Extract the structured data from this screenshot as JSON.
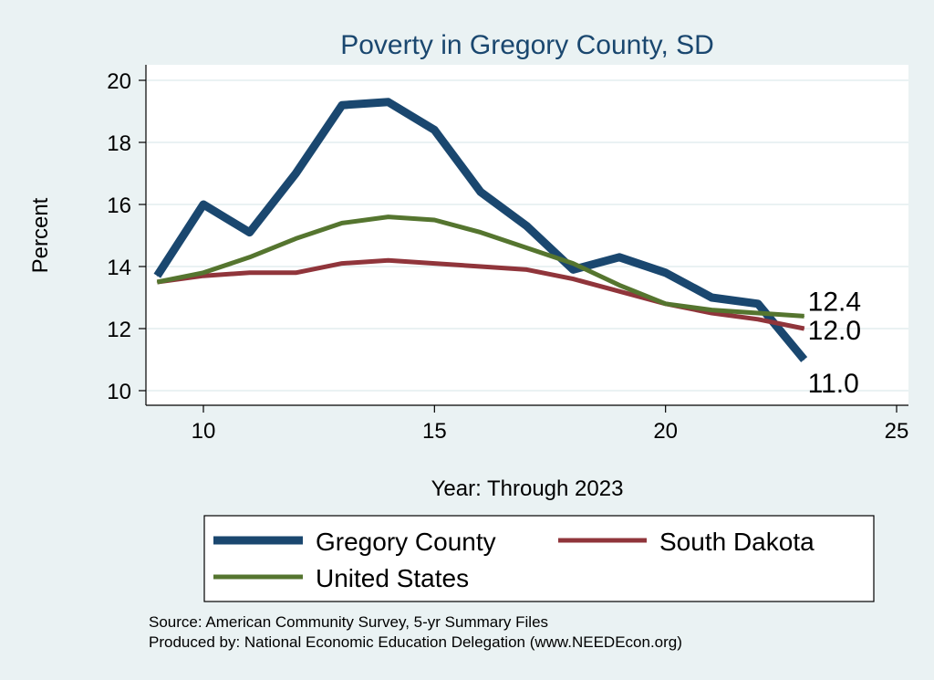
{
  "chart_data": {
    "type": "line",
    "title": "Poverty in Gregory County, SD",
    "xlabel": "Year: Through 2023",
    "ylabel": "Percent",
    "xlim": [
      8.7,
      25.3
    ],
    "ylim": [
      9.5,
      20.5
    ],
    "xticks": [
      10,
      15,
      20,
      25
    ],
    "yticks": [
      10,
      12,
      14,
      16,
      18,
      20
    ],
    "grid": true,
    "legend_position": "bottom",
    "x": [
      9,
      10,
      11,
      12,
      13,
      14,
      15,
      16,
      17,
      18,
      19,
      20,
      21,
      22,
      23
    ],
    "series": [
      {
        "name": "Gregory County",
        "color": "#1a476f",
        "values": [
          13.7,
          16.0,
          15.1,
          17.0,
          19.2,
          19.3,
          18.4,
          16.4,
          15.3,
          13.9,
          14.3,
          13.8,
          13.0,
          12.8,
          11.0
        ],
        "end_label": "11.0"
      },
      {
        "name": "South Dakota",
        "color": "#90353b",
        "values": [
          13.5,
          13.7,
          13.8,
          13.8,
          14.1,
          14.2,
          14.1,
          14.0,
          13.9,
          13.6,
          13.2,
          12.8,
          12.5,
          12.3,
          12.0
        ],
        "end_label": "12.0"
      },
      {
        "name": "United States",
        "color": "#55752f",
        "values": [
          13.5,
          13.8,
          14.3,
          14.9,
          15.4,
          15.6,
          15.5,
          15.1,
          14.6,
          14.1,
          13.4,
          12.8,
          12.6,
          12.5,
          12.4
        ],
        "end_label": "12.4"
      }
    ]
  },
  "notes": {
    "source": "Source: American Community Survey, 5-yr Summary Files",
    "produced": "Produced by: National Economic Education Delegation (www.NEEDEcon.org)"
  }
}
